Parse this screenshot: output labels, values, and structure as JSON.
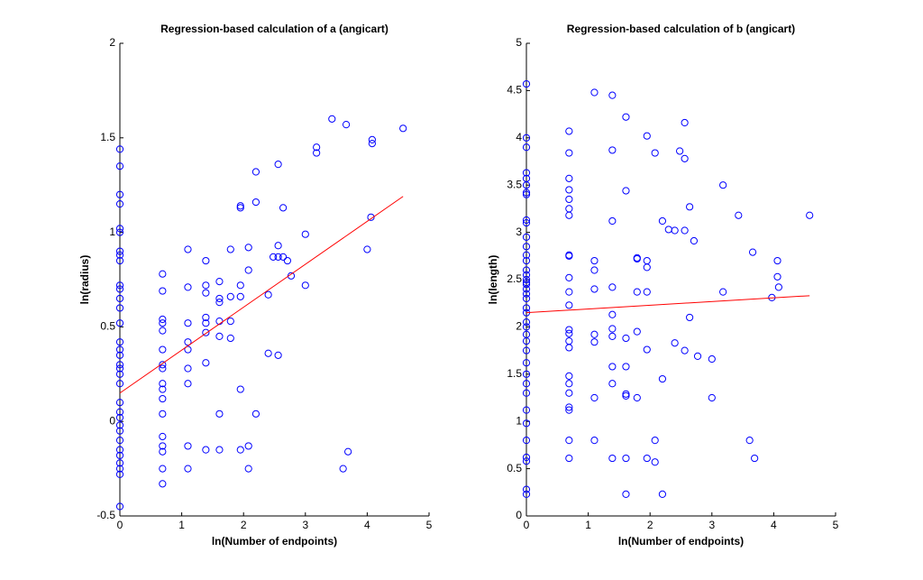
{
  "chart_data": [
    {
      "type": "scatter",
      "title": "Regression-based calculation of a (angicart)",
      "xlabel": "ln(Number of endpoints)",
      "ylabel": "ln(radius)",
      "color": "#0000ff",
      "fit_color": "#ff0000",
      "xlim": [
        0,
        5
      ],
      "xticks": [
        0,
        1,
        2,
        3,
        4,
        5
      ],
      "ylim": [
        -0.5,
        2
      ],
      "yticks": [
        -0.5,
        0,
        0.5,
        1,
        1.5,
        2
      ],
      "x": [
        0,
        0,
        0,
        0,
        0,
        0,
        0,
        0,
        0,
        0,
        0,
        0,
        0,
        0,
        0,
        0,
        0,
        0,
        0,
        0,
        0,
        0,
        0,
        0,
        0,
        0,
        0,
        0,
        0,
        0,
        0,
        0,
        0,
        0.69,
        0.69,
        0.69,
        0.69,
        0.69,
        0.69,
        0.69,
        0.69,
        0.69,
        0.69,
        0.69,
        0.69,
        0.69,
        0.69,
        0.69,
        0.69,
        0.69,
        1.1,
        1.1,
        1.1,
        1.1,
        1.1,
        1.1,
        1.1,
        1.1,
        1.1,
        1.39,
        1.39,
        1.39,
        1.39,
        1.39,
        1.39,
        1.39,
        1.39,
        1.61,
        1.61,
        1.61,
        1.61,
        1.61,
        1.61,
        1.61,
        1.79,
        1.79,
        1.79,
        1.79,
        1.95,
        1.95,
        1.95,
        1.95,
        1.95,
        1.95,
        2.08,
        2.08,
        2.08,
        2.08,
        2.2,
        2.2,
        2.2,
        2.4,
        2.4,
        2.48,
        2.56,
        2.56,
        2.56,
        2.56,
        2.64,
        2.64,
        2.71,
        2.77,
        3.0,
        3.0,
        3.18,
        3.18,
        3.43,
        3.61,
        3.66,
        3.69,
        4.0,
        4.06,
        4.08,
        4.08,
        4.58
      ],
      "values": [
        1.44,
        1.35,
        1.2,
        1.15,
        1.02,
        1.0,
        0.9,
        0.88,
        0.85,
        0.72,
        0.7,
        0.65,
        0.6,
        0.52,
        0.42,
        0.38,
        0.35,
        0.3,
        0.28,
        0.25,
        0.2,
        0.1,
        0.05,
        0.02,
        -0.02,
        -0.05,
        -0.1,
        -0.15,
        -0.18,
        -0.22,
        -0.25,
        -0.28,
        -0.45,
        0.78,
        0.69,
        0.54,
        0.52,
        0.48,
        0.38,
        0.3,
        0.28,
        0.2,
        0.17,
        0.12,
        0.04,
        -0.08,
        -0.13,
        -0.16,
        -0.25,
        -0.33,
        0.91,
        0.71,
        0.52,
        0.42,
        0.38,
        0.28,
        0.2,
        -0.13,
        -0.25,
        0.85,
        0.72,
        0.68,
        0.55,
        0.52,
        0.47,
        0.31,
        -0.15,
        0.74,
        0.65,
        0.63,
        0.53,
        0.45,
        0.04,
        -0.15,
        0.91,
        0.66,
        0.53,
        0.44,
        1.14,
        1.13,
        0.72,
        0.66,
        0.17,
        -0.15,
        0.92,
        0.8,
        -0.13,
        -0.25,
        1.32,
        1.16,
        0.04,
        0.67,
        0.36,
        0.87,
        1.36,
        0.93,
        0.87,
        0.35,
        1.13,
        0.87,
        0.85,
        0.77,
        0.99,
        0.72,
        1.45,
        1.42,
        1.6,
        -0.25,
        1.57,
        -0.16,
        0.91,
        1.08,
        1.49,
        1.47,
        1.55
      ],
      "fit_x": [
        0,
        4.58
      ],
      "fit_values": [
        0.15,
        1.19
      ]
    },
    {
      "type": "scatter",
      "title": "Regression-based calculation of b (angicart)",
      "xlabel": "ln(Number of endpoints)",
      "ylabel": "ln(length)",
      "color": "#0000ff",
      "fit_color": "#ff0000",
      "xlim": [
        0,
        5
      ],
      "xticks": [
        0,
        1,
        2,
        3,
        4,
        5
      ],
      "ylim": [
        0,
        5
      ],
      "yticks": [
        0,
        0.5,
        1,
        1.5,
        2,
        2.5,
        3,
        3.5,
        4,
        4.5,
        5
      ],
      "x": [
        0,
        0,
        0,
        0,
        0,
        0,
        0,
        0,
        0,
        0,
        0,
        0,
        0,
        0,
        0,
        0,
        0,
        0,
        0,
        0,
        0,
        0,
        0,
        0,
        0,
        0,
        0,
        0,
        0,
        0,
        0,
        0,
        0,
        0,
        0,
        0,
        0,
        0,
        0,
        0,
        0.69,
        0.69,
        0.69,
        0.69,
        0.69,
        0.69,
        0.69,
        0.69,
        0.69,
        0.69,
        0.69,
        0.69,
        0.69,
        0.69,
        0.69,
        0.69,
        0.69,
        0.69,
        0.69,
        0.69,
        0.69,
        0.69,
        0.69,
        1.1,
        1.1,
        1.1,
        1.1,
        1.1,
        1.1,
        1.1,
        1.1,
        1.39,
        1.39,
        1.39,
        1.39,
        1.39,
        1.39,
        1.39,
        1.39,
        1.39,
        1.39,
        1.61,
        1.61,
        1.61,
        1.61,
        1.61,
        1.61,
        1.61,
        1.61,
        1.79,
        1.79,
        1.79,
        1.79,
        1.79,
        1.95,
        1.95,
        1.95,
        1.95,
        1.95,
        1.95,
        2.08,
        2.08,
        2.08,
        2.2,
        2.2,
        2.2,
        2.3,
        2.4,
        2.4,
        2.48,
        2.56,
        2.56,
        2.56,
        2.56,
        2.64,
        2.64,
        2.71,
        2.77,
        3.0,
        3.0,
        3.18,
        3.18,
        3.43,
        3.61,
        3.66,
        3.69,
        3.97,
        4.06,
        4.06,
        4.08,
        4.58
      ],
      "values": [
        4.57,
        4.0,
        3.9,
        3.63,
        3.57,
        3.5,
        3.42,
        3.4,
        3.13,
        3.1,
        2.95,
        2.85,
        2.76,
        2.7,
        2.6,
        2.55,
        2.5,
        2.47,
        2.45,
        2.4,
        2.35,
        2.3,
        2.2,
        2.15,
        2.05,
        2.0,
        1.92,
        1.85,
        1.75,
        1.62,
        1.5,
        1.4,
        1.3,
        1.12,
        0.98,
        0.8,
        0.62,
        0.58,
        0.28,
        0.23,
        4.07,
        3.84,
        3.57,
        3.45,
        3.35,
        3.25,
        3.18,
        2.76,
        2.75,
        2.52,
        2.37,
        2.23,
        1.97,
        1.93,
        1.85,
        1.78,
        1.48,
        1.4,
        1.3,
        1.15,
        1.12,
        0.8,
        0.61,
        4.48,
        2.7,
        2.6,
        2.4,
        1.92,
        1.84,
        1.25,
        0.8,
        4.45,
        3.87,
        3.12,
        2.42,
        2.13,
        1.98,
        1.9,
        1.58,
        1.4,
        0.61,
        4.22,
        3.44,
        1.88,
        1.58,
        1.29,
        1.27,
        0.61,
        0.23,
        2.73,
        2.72,
        2.37,
        1.95,
        1.25,
        4.02,
        2.7,
        2.63,
        2.37,
        1.76,
        0.61,
        3.84,
        0.8,
        0.57,
        3.12,
        1.45,
        0.23,
        3.03,
        3.02,
        1.83,
        3.86,
        4.16,
        3.78,
        3.02,
        1.75,
        3.27,
        2.1,
        2.91,
        1.69,
        1.66,
        1.25,
        3.5,
        2.37,
        3.18,
        0.8,
        2.79,
        0.61,
        2.31,
        2.7,
        2.53,
        2.42,
        3.18
      ],
      "fit_x": [
        0,
        4.58
      ],
      "fit_values": [
        2.15,
        2.33
      ]
    }
  ]
}
